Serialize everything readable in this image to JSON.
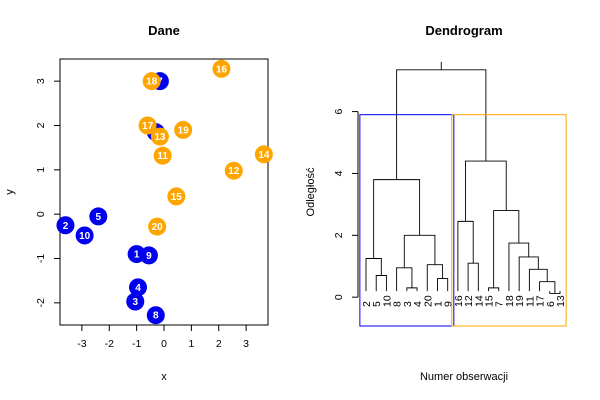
{
  "chart_data": [
    {
      "type": "scatter",
      "title": "Dane",
      "xlabel": "x",
      "ylabel": "y",
      "xlim": [
        -3.8,
        3.8
      ],
      "ylim": [
        -2.5,
        3.5
      ],
      "xticks": [
        "-3",
        "-2",
        "-1",
        "0",
        "1",
        "2",
        "3"
      ],
      "yticks": [
        "-2",
        "-1",
        "0",
        "1",
        "2",
        "3"
      ],
      "cluster_colors": {
        "1": "#0000ee",
        "2": "#ffa500"
      },
      "points": [
        {
          "label": "1",
          "x": -1.0,
          "y": -0.9,
          "cluster": 1
        },
        {
          "label": "2",
          "x": -3.6,
          "y": -0.25,
          "cluster": 1
        },
        {
          "label": "3",
          "x": -1.05,
          "y": -1.97,
          "cluster": 1
        },
        {
          "label": "4",
          "x": -0.95,
          "y": -1.65,
          "cluster": 1
        },
        {
          "label": "5",
          "x": -2.4,
          "y": -0.05,
          "cluster": 1
        },
        {
          "label": "6",
          "x": -0.3,
          "y": 1.85,
          "cluster": 1
        },
        {
          "label": "7",
          "x": -0.15,
          "y": 3.0,
          "cluster": 1
        },
        {
          "label": "8",
          "x": -0.3,
          "y": -2.28,
          "cluster": 1
        },
        {
          "label": "9",
          "x": -0.55,
          "y": -0.93,
          "cluster": 1
        },
        {
          "label": "10",
          "x": -2.9,
          "y": -0.48,
          "cluster": 1
        },
        {
          "label": "11",
          "x": -0.05,
          "y": 1.32,
          "cluster": 2
        },
        {
          "label": "12",
          "x": 2.55,
          "y": 0.98,
          "cluster": 2
        },
        {
          "label": "13",
          "x": -0.15,
          "y": 1.75,
          "cluster": 2
        },
        {
          "label": "14",
          "x": 3.65,
          "y": 1.35,
          "cluster": 2
        },
        {
          "label": "15",
          "x": 0.45,
          "y": 0.4,
          "cluster": 2
        },
        {
          "label": "16",
          "x": 2.1,
          "y": 3.28,
          "cluster": 2
        },
        {
          "label": "17",
          "x": -0.6,
          "y": 2.0,
          "cluster": 2
        },
        {
          "label": "18",
          "x": -0.45,
          "y": 3.0,
          "cluster": 2
        },
        {
          "label": "19",
          "x": 0.7,
          "y": 1.9,
          "cluster": 2
        },
        {
          "label": "20",
          "x": -0.25,
          "y": -0.28,
          "cluster": 2
        }
      ]
    },
    {
      "type": "dendrogram",
      "title": "Dendrogram",
      "xlabel": "Numer obserwacji",
      "ylabel": "Odległość",
      "ylim": [
        -0.9,
        7.7
      ],
      "yticks": [
        "0",
        "2",
        "4",
        "6"
      ],
      "leaf_order": [
        "2",
        "5",
        "10",
        "8",
        "3",
        "4",
        "20",
        "1",
        "9",
        "16",
        "12",
        "14",
        "15",
        "7",
        "18",
        "19",
        "11",
        "17",
        "6",
        "13"
      ],
      "merges": [
        {
          "left": "n0",
          "right": "n1",
          "height": 1.25
        },
        {
          "left": "n0.5",
          "right": "n2",
          "height": 3.8
        },
        {
          "left": "n3",
          "right": "n5",
          "height": 0.95
        },
        {
          "left": "n4",
          "right": "n5",
          "height": 0.3
        },
        {
          "left": "n3.5",
          "right": "n4.5",
          "height": 2.0
        },
        {
          "left": "n7",
          "right": "n8",
          "height": 1.05
        },
        {
          "left": "n4",
          "right": "n7.5",
          "height": 1.05
        },
        {
          "left": "n9",
          "right": "n10",
          "height": 2.45
        },
        {
          "left": "n11",
          "right": "n12",
          "height": 1.1
        },
        {
          "left": "n13",
          "right": "n14",
          "height": 0.3
        },
        {
          "left": "n15",
          "right": "n16",
          "height": 0.9
        },
        {
          "left": "n17",
          "right": "n18",
          "height": 0.5
        },
        {
          "left": "n18",
          "right": "n19",
          "height": 0.12
        },
        {
          "left": "n12",
          "right": "n13",
          "height": 2.8
        },
        {
          "left": "n9.5",
          "right": "n13",
          "height": 4.4
        },
        {
          "left": "n2.5",
          "right": "n15",
          "height": 7.35
        }
      ],
      "cluster_boxes": [
        {
          "from": "2",
          "to": "9",
          "top": 5.9,
          "color": "#0000ee"
        },
        {
          "from": "16",
          "to": "13",
          "top": 5.9,
          "color": "#ffa500"
        }
      ]
    }
  ]
}
